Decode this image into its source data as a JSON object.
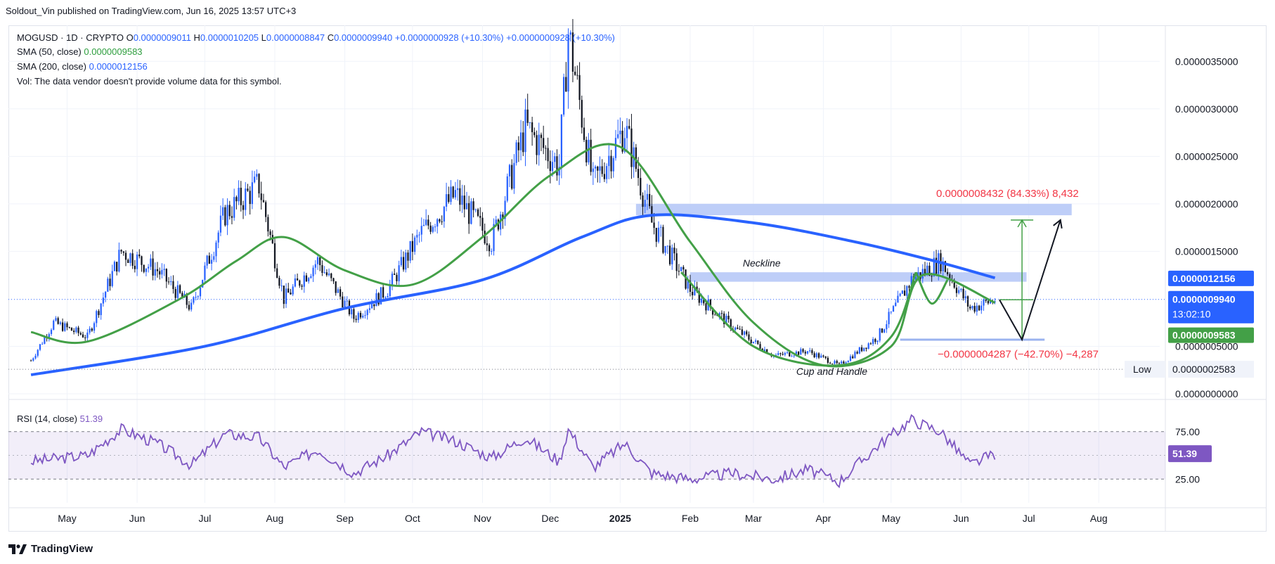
{
  "publisher": "Soldout_Vin published on TradingView.com, Jun 16, 2025 13:57 UTC+3",
  "legend": {
    "symbol": "MOGUSD · 1D · CRYPTO",
    "o_label": "O",
    "o_value": "0.0000009011",
    "h_label": "H",
    "h_value": "0.0000010205",
    "l_label": "L",
    "l_value": "0.0000008847",
    "c_label": "C",
    "c_value": "0.0000009940",
    "change1": "+0.0000000928 (+10.30%)",
    "change2": "+0.0000000928 (+10.30%)",
    "sma50_label": "SMA (50, close)",
    "sma50_value": "0.0000009583",
    "sma200_label": "SMA (200, close)",
    "sma200_value": "0.0000012156",
    "vol_note": "Vol: The data vendor doesn't provide volume data for this symbol."
  },
  "rsi": {
    "label": "RSI (14, close)",
    "value": "51.39",
    "ticks": [
      "75.00",
      "25.00"
    ]
  },
  "annotations": {
    "neckline": "Neckline",
    "cup_handle": "Cup and Handle",
    "up_target": "0.0000008432 (84.33%) 8,432",
    "down_target": "−0.0000004287 (−42.70%) −4,287",
    "low_label": "Low",
    "low_value": "0.0000002583",
    "countdown": "13:02:10"
  },
  "price_tags": {
    "sma200": "0.0000012156",
    "close": "0.0000009940",
    "sma50": "0.0000009583"
  },
  "colors": {
    "up": "#2962ff",
    "down": "#131722",
    "sma50": "#43a047",
    "sma200": "#2962ff",
    "rsi": "#7e57c2",
    "zone": "#b3c6f7",
    "target_up": "#43a047",
    "target_down": "#f23645"
  },
  "footer": {
    "brand": "TradingView"
  },
  "chart_data": {
    "type": "candlestick",
    "symbol": "MOGUSD",
    "interval": "1D",
    "x_ticks": [
      "May",
      "Jun",
      "Jul",
      "Aug",
      "Sep",
      "Oct",
      "Nov",
      "Dec",
      "2025",
      "Feb",
      "Mar",
      "Apr",
      "May",
      "Jun",
      "Jul",
      "Aug"
    ],
    "y_ticks": [
      "0.0000035000",
      "0.0000030000",
      "0.0000025000",
      "0.0000020000",
      "0.0000015000",
      "0.0000005000",
      "0.0000000000"
    ],
    "ylim": [
      0,
      3.85e-06
    ],
    "close_path": [
      [
        "2024-04-15",
        3.5e-07
      ],
      [
        "2024-04-25",
        7.5e-07
      ],
      [
        "2024-05-10",
        6e-07
      ],
      [
        "2024-05-25",
        1.5e-06
      ],
      [
        "2024-06-10",
        1.3e-06
      ],
      [
        "2024-06-25",
        9e-07
      ],
      [
        "2024-07-10",
        1.9e-06
      ],
      [
        "2024-07-25",
        2.2e-06
      ],
      [
        "2024-08-05",
        1e-06
      ],
      [
        "2024-08-20",
        1.4e-06
      ],
      [
        "2024-09-05",
        8e-07
      ],
      [
        "2024-09-20",
        1.1e-06
      ],
      [
        "2024-10-05",
        1.7e-06
      ],
      [
        "2024-10-20",
        2.1e-06
      ],
      [
        "2024-11-05",
        1.6e-06
      ],
      [
        "2024-11-20",
        2.8e-06
      ],
      [
        "2024-12-05",
        2.4e-06
      ],
      [
        "2024-12-09",
        3.8e-06
      ],
      [
        "2024-12-20",
        2.2e-06
      ],
      [
        "2025-01-03",
        2.8e-06
      ],
      [
        "2025-01-15",
        1.8e-06
      ],
      [
        "2025-02-01",
        1.1e-06
      ],
      [
        "2025-02-20",
        7e-07
      ],
      [
        "2025-03-10",
        4e-07
      ],
      [
        "2025-03-25",
        4.5e-07
      ],
      [
        "2025-04-08",
        3e-07
      ],
      [
        "2025-04-25",
        6e-07
      ],
      [
        "2025-05-10",
        1.2e-06
      ],
      [
        "2025-05-23",
        1.4e-06
      ],
      [
        "2025-06-05",
        9e-07
      ],
      [
        "2025-06-16",
        9.9e-07
      ]
    ],
    "sma50_path": [
      [
        "2024-04-15",
        6.5e-07
      ],
      [
        "2024-05-10",
        5.5e-07
      ],
      [
        "2024-06-20",
        1e-06
      ],
      [
        "2024-07-15",
        1.4e-06
      ],
      [
        "2024-08-05",
        1.65e-06
      ],
      [
        "2024-09-01",
        1.3e-06
      ],
      [
        "2024-10-01",
        1.15e-06
      ],
      [
        "2024-11-01",
        1.65e-06
      ],
      [
        "2024-12-01",
        2.3e-06
      ],
      [
        "2025-01-01",
        2.6e-06
      ],
      [
        "2025-02-01",
        1.6e-06
      ],
      [
        "2025-03-01",
        7.5e-07
      ],
      [
        "2025-04-01",
        3e-07
      ],
      [
        "2025-05-01",
        5e-07
      ],
      [
        "2025-05-15",
        1.25e-06
      ],
      [
        "2025-06-16",
        9.6e-07
      ]
    ],
    "sma200_path": [
      [
        "2024-04-15",
        2e-07
      ],
      [
        "2024-07-01",
        5e-07
      ],
      [
        "2024-09-01",
        9e-07
      ],
      [
        "2024-11-01",
        1.2e-06
      ],
      [
        "2024-12-15",
        1.65e-06
      ],
      [
        "2025-01-15",
        1.88e-06
      ],
      [
        "2025-03-01",
        1.8e-06
      ],
      [
        "2025-04-15",
        1.6e-06
      ],
      [
        "2025-05-20",
        1.4e-06
      ],
      [
        "2025-06-16",
        1.22e-06
      ]
    ],
    "rsi_path": [
      [
        "2024-04-15",
        45
      ],
      [
        "2024-05-10",
        50
      ],
      [
        "2024-05-25",
        72
      ],
      [
        "2024-06-10",
        60
      ],
      [
        "2024-06-25",
        42
      ],
      [
        "2024-07-10",
        68
      ],
      [
        "2024-07-25",
        65
      ],
      [
        "2024-08-05",
        40
      ],
      [
        "2024-08-20",
        55
      ],
      [
        "2024-09-05",
        35
      ],
      [
        "2024-09-20",
        50
      ],
      [
        "2024-10-05",
        70
      ],
      [
        "2024-10-20",
        62
      ],
      [
        "2024-11-05",
        48
      ],
      [
        "2024-11-20",
        65
      ],
      [
        "2024-12-05",
        45
      ],
      [
        "2024-12-09",
        72
      ],
      [
        "2024-12-20",
        40
      ],
      [
        "2025-01-03",
        60
      ],
      [
        "2025-01-15",
        35
      ],
      [
        "2025-02-01",
        30
      ],
      [
        "2025-02-20",
        35
      ],
      [
        "2025-03-10",
        30
      ],
      [
        "2025-03-25",
        38
      ],
      [
        "2025-04-08",
        28
      ],
      [
        "2025-04-25",
        58
      ],
      [
        "2025-05-10",
        80
      ],
      [
        "2025-05-23",
        70
      ],
      [
        "2025-06-05",
        42
      ],
      [
        "2025-06-16",
        51.39
      ]
    ],
    "zones": [
      {
        "from": "2025-01-08",
        "to": "2025-07-20",
        "low": 1.88e-06,
        "high": 2e-06
      },
      {
        "from": "2025-02-01",
        "to": "2025-06-30",
        "low": 1.18e-06,
        "high": 1.28e-06
      }
    ]
  }
}
